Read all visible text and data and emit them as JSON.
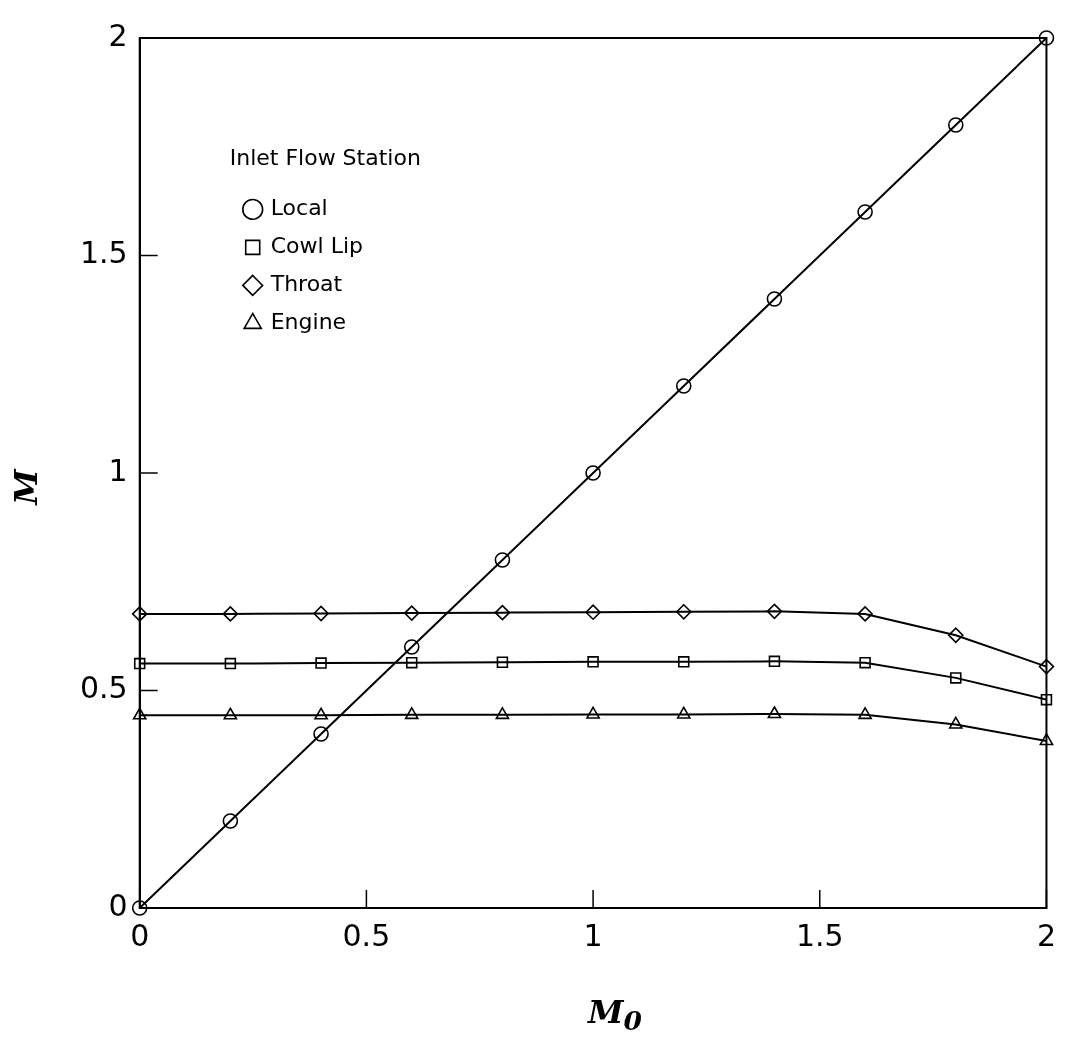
{
  "chart_data": {
    "type": "line",
    "xlabel": "M$_{0}$",
    "ylabel": "M",
    "legend_title": "Inlet Flow Station",
    "legend": "top left",
    "grid": false,
    "x": [
      0,
      0.2,
      0.4,
      0.6,
      0.8,
      1,
      1.2,
      1.4,
      1.6,
      1.8,
      2
    ],
    "xlim": [
      0,
      2
    ],
    "xticks": [
      0,
      0.5,
      1,
      1.5,
      2
    ],
    "ylim": [
      0,
      2
    ],
    "yticks": [
      0,
      0.5,
      1,
      1.5,
      2
    ],
    "line_style": "solid",
    "series": [
      {
        "name": "Local",
        "color": "#000000",
        "marker": "circle",
        "values": [
          0,
          0.2,
          0.4,
          0.6,
          0.8,
          1,
          1.2,
          1.4,
          1.6,
          1.8,
          2
        ]
      },
      {
        "name": "Cowl Lip",
        "color": "#000000",
        "marker": "square",
        "values": [
          0.562,
          0.562,
          0.563,
          0.564,
          0.565,
          0.566,
          0.566,
          0.567,
          0.564,
          0.529,
          0.479
        ]
      },
      {
        "name": "Throat",
        "color": "#000000",
        "marker": "diamond",
        "values": [
          0.676,
          0.676,
          0.677,
          0.678,
          0.679,
          0.68,
          0.681,
          0.682,
          0.676,
          0.627,
          0.555
        ]
      },
      {
        "name": "Engine",
        "color": "#000000",
        "marker": "triangle",
        "values": [
          0.443,
          0.443,
          0.443,
          0.444,
          0.444,
          0.445,
          0.445,
          0.446,
          0.444,
          0.422,
          0.384
        ]
      }
    ]
  }
}
